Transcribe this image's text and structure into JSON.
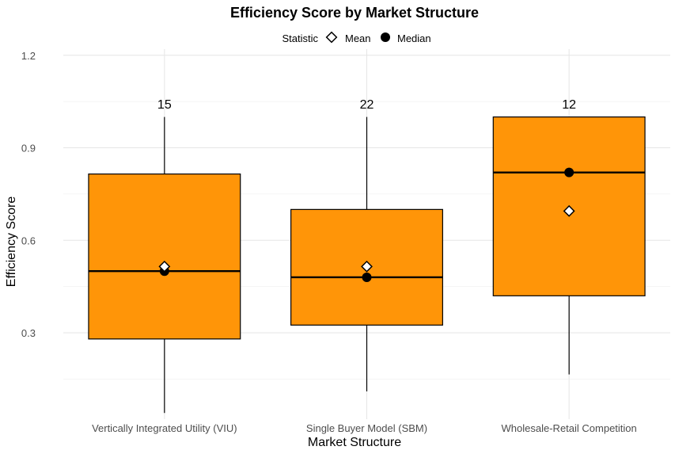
{
  "chart_data": {
    "type": "box",
    "title": "Efficiency Score by Market Structure",
    "xlabel": "Market Structure",
    "ylabel": "Efficiency Score",
    "ylim": [
      0.02,
      1.22
    ],
    "yticks": [
      0.3,
      0.6,
      0.9,
      1.2
    ],
    "yticks_labels": [
      "0.3",
      "0.6",
      "0.9",
      "1.2"
    ],
    "grid": true,
    "legend": {
      "title": "Statistic",
      "position": "top",
      "entries": [
        {
          "label": "Mean",
          "shape": "diamond-open"
        },
        {
          "label": "Median",
          "shape": "circle-filled"
        }
      ]
    },
    "box_color": "#FF9508",
    "categories": [
      "Vertically Integrated Utility (VIU)",
      "Single Buyer Model (SBM)",
      "Wholesale-Retail Competition"
    ],
    "boxes": [
      {
        "category": "Vertically Integrated Utility (VIU)",
        "whisker_low": 0.04,
        "q1": 0.28,
        "median": 0.5,
        "q3": 0.815,
        "whisker_high": 1.0,
        "mean": 0.515,
        "n": "15"
      },
      {
        "category": "Single Buyer Model (SBM)",
        "whisker_low": 0.11,
        "q1": 0.325,
        "median": 0.48,
        "q3": 0.7,
        "whisker_high": 1.0,
        "mean": 0.515,
        "n": "22"
      },
      {
        "category": "Wholesale-Retail Competition",
        "whisker_low": 0.165,
        "q1": 0.42,
        "median": 0.82,
        "q3": 1.0,
        "whisker_high": 1.0,
        "mean": 0.695,
        "n": "12"
      }
    ]
  }
}
